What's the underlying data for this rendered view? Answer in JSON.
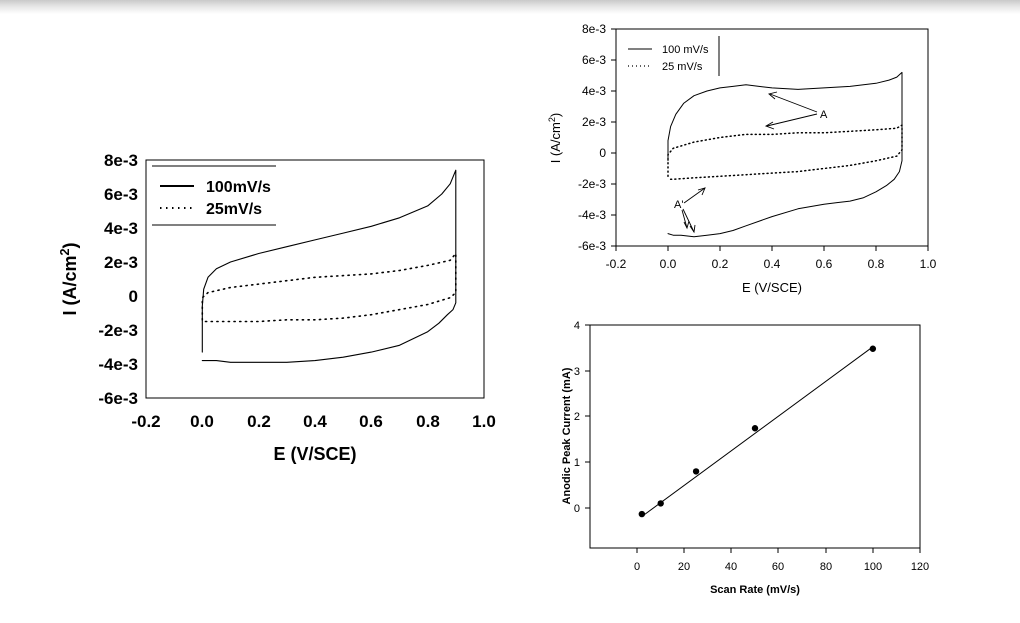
{
  "chart_data": [
    {
      "type": "line",
      "title": "",
      "xlabel": "E (V/SCE)",
      "ylabel": "I (A/cm2)",
      "xlim": [
        -0.2,
        1.0
      ],
      "ylim": [
        -0.006,
        0.008
      ],
      "xticks": [
        "-0.2",
        "0.0",
        "0.2",
        "0.4",
        "0.6",
        "0.8",
        "1.0"
      ],
      "yticks": [
        "-6e-3",
        "-4e-3",
        "-2e-3",
        "0",
        "2e-3",
        "4e-3",
        "6e-3",
        "8e-3"
      ],
      "legend": "top-left",
      "grid": false,
      "series": [
        {
          "name": "100mV/s",
          "style": "solid",
          "x": [
            0.0,
            0.0,
            0.005,
            0.02,
            0.05,
            0.1,
            0.2,
            0.3,
            0.4,
            0.5,
            0.6,
            0.7,
            0.8,
            0.85,
            0.88,
            0.9,
            0.9,
            0.89,
            0.87,
            0.84,
            0.8,
            0.75,
            0.7,
            0.6,
            0.5,
            0.4,
            0.3,
            0.2,
            0.1,
            0.05,
            0.01,
            0.0
          ],
          "y": [
            -0.0033,
            -0.0006,
            0.0004,
            0.0011,
            0.0016,
            0.002,
            0.0025,
            0.0029,
            0.0033,
            0.0037,
            0.0041,
            0.0046,
            0.0053,
            0.006,
            0.0066,
            0.0074,
            -0.0004,
            -0.0008,
            -0.0011,
            -0.0016,
            -0.0021,
            -0.0025,
            -0.0029,
            -0.0033,
            -0.0036,
            -0.0038,
            -0.0039,
            -0.0039,
            -0.0039,
            -0.0038,
            -0.0038,
            -0.0038
          ]
        },
        {
          "name": "25mV/s",
          "style": "dotted",
          "x": [
            0.0,
            0.0,
            0.02,
            0.1,
            0.2,
            0.3,
            0.4,
            0.5,
            0.6,
            0.7,
            0.8,
            0.88,
            0.9,
            0.9,
            0.88,
            0.8,
            0.7,
            0.6,
            0.5,
            0.4,
            0.3,
            0.2,
            0.1,
            0.02,
            0.0
          ],
          "y": [
            -0.0014,
            -0.0001,
            0.0002,
            0.0005,
            0.0007,
            0.0009,
            0.0011,
            0.0012,
            0.0013,
            0.0015,
            0.0018,
            0.0021,
            0.0025,
            0.0002,
            -0.0001,
            -0.0005,
            -0.0008,
            -0.0011,
            -0.0013,
            -0.0014,
            -0.0014,
            -0.0015,
            -0.0015,
            -0.0015,
            -0.0015
          ]
        }
      ]
    },
    {
      "type": "line",
      "title": "",
      "xlabel": "E (V/SCE)",
      "ylabel": "I (A/cm2)",
      "xlim": [
        -0.2,
        1.0
      ],
      "ylim": [
        -0.006,
        0.008
      ],
      "xticks": [
        "-0.2",
        "0.0",
        "0.2",
        "0.4",
        "0.6",
        "0.8",
        "1.0"
      ],
      "yticks": [
        "-6e-3",
        "-4e-3",
        "-2e-3",
        "0",
        "2e-3",
        "4e-3",
        "6e-3",
        "8e-3"
      ],
      "legend": "top-left",
      "grid": false,
      "annotations": [
        "A",
        "A'"
      ],
      "series": [
        {
          "name": "100 mV/s",
          "style": "solid",
          "x": [
            0.0,
            0.0,
            0.01,
            0.03,
            0.06,
            0.1,
            0.15,
            0.2,
            0.25,
            0.3,
            0.35,
            0.4,
            0.5,
            0.6,
            0.7,
            0.8,
            0.85,
            0.88,
            0.9,
            0.9,
            0.89,
            0.87,
            0.84,
            0.8,
            0.75,
            0.7,
            0.65,
            0.6,
            0.5,
            0.4,
            0.3,
            0.25,
            0.2,
            0.15,
            0.1,
            0.05,
            0.02,
            0.0
          ],
          "y": [
            -0.0005,
            0.0008,
            0.0017,
            0.0025,
            0.0032,
            0.0037,
            0.004,
            0.0042,
            0.0043,
            0.0044,
            0.0043,
            0.0042,
            0.0041,
            0.0042,
            0.0043,
            0.0045,
            0.0047,
            0.0049,
            0.0052,
            -0.0005,
            -0.0012,
            -0.0017,
            -0.0021,
            -0.0025,
            -0.0029,
            -0.0031,
            -0.0032,
            -0.0033,
            -0.0036,
            -0.0041,
            -0.0047,
            -0.005,
            -0.0052,
            -0.0053,
            -0.0054,
            -0.0053,
            -0.0053,
            -0.0052
          ]
        },
        {
          "name": "25 mV/s",
          "style": "dotted",
          "x": [
            0.0,
            0.0,
            0.02,
            0.1,
            0.2,
            0.3,
            0.4,
            0.5,
            0.6,
            0.7,
            0.8,
            0.88,
            0.9,
            0.9,
            0.88,
            0.8,
            0.7,
            0.6,
            0.5,
            0.4,
            0.3,
            0.2,
            0.1,
            0.02,
            0.0
          ],
          "y": [
            -0.0015,
            -0.0001,
            0.0003,
            0.0007,
            0.001,
            0.0012,
            0.0012,
            0.0013,
            0.0013,
            0.0014,
            0.0015,
            0.0016,
            0.0018,
            0.0002,
            -0.0002,
            -0.0005,
            -0.0008,
            -0.001,
            -0.0012,
            -0.0013,
            -0.0014,
            -0.0015,
            -0.0016,
            -0.0017,
            -0.0017
          ]
        }
      ]
    },
    {
      "type": "scatter",
      "title": "",
      "xlabel": "Scan Rate (mV/s)",
      "ylabel": "Anodic Peak Current (mA)",
      "xlim": [
        -20,
        120
      ],
      "ylim": [
        -0.6,
        4
      ],
      "xticks": [
        "0",
        "20",
        "40",
        "60",
        "80",
        "100",
        "120"
      ],
      "yticks": [
        "0",
        "1",
        "2",
        "3",
        "4"
      ],
      "grid": false,
      "fit_line": {
        "x": [
          2,
          100
        ],
        "y": [
          0.05,
          3.55
        ]
      },
      "series": [
        {
          "x": [
            2,
            10,
            25,
            50,
            100
          ],
          "y": [
            0.1,
            0.32,
            0.98,
            1.87,
            3.51
          ]
        }
      ]
    }
  ]
}
